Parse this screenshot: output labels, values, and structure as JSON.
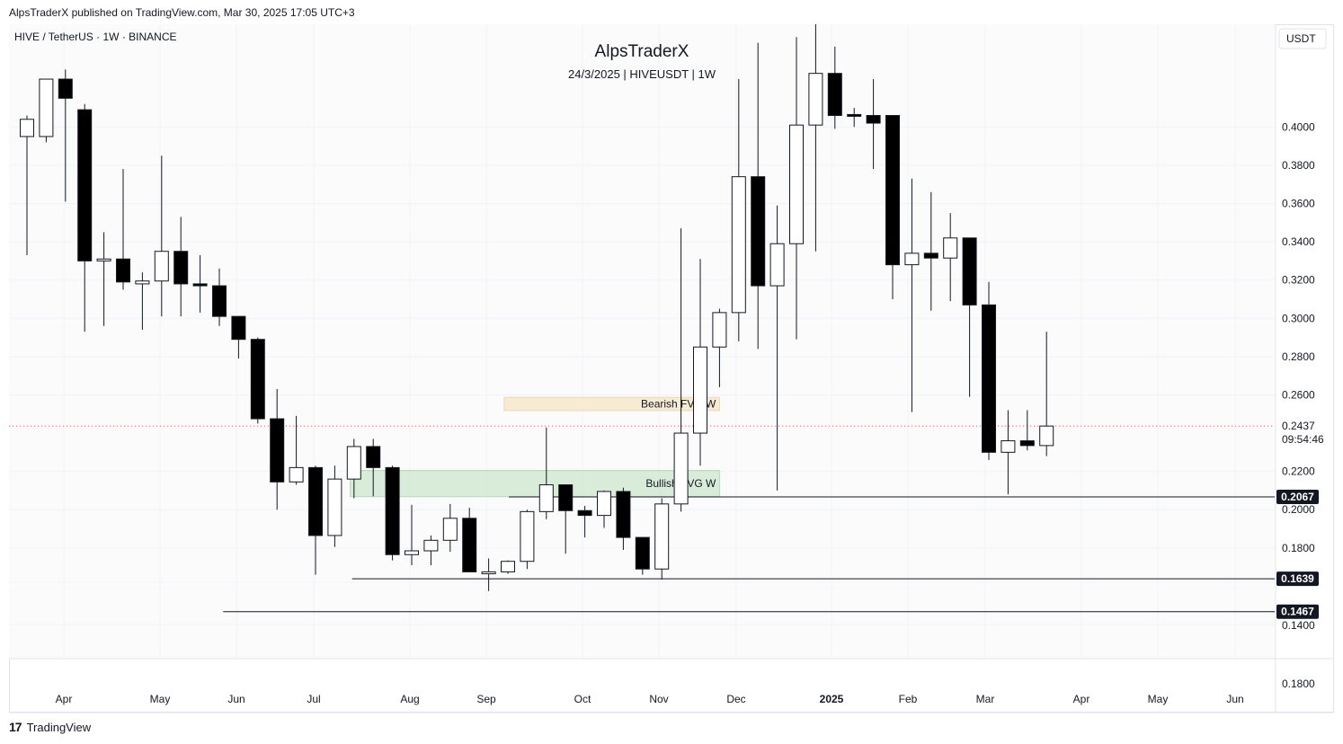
{
  "header": {
    "publisher_line": "AlpsTraderX published on TradingView.com, Mar 30, 2025 17:05 UTC+3"
  },
  "footer": {
    "brand": "TradingView"
  },
  "chart_data": {
    "type": "candlestick",
    "symbol_line": "HIVE / TetherUS · 1W · BINANCE",
    "title": "AlpsTraderX",
    "subtitle": "24/3/2025 | HIVEUSDT | 1W",
    "currency_label": "USDT",
    "y_ticks": [
      "0.4000",
      "0.3800",
      "0.3600",
      "0.3400",
      "0.3200",
      "0.3000",
      "0.2800",
      "0.2600",
      "0.2200",
      "0.2000",
      "0.1800",
      "0.1400"
    ],
    "lower_pane_tick": "0.1800",
    "x_ticks": [
      "Apr",
      "May",
      "Jun",
      "Jul",
      "Aug",
      "Sep",
      "Oct",
      "Nov",
      "Dec",
      "2025",
      "Feb",
      "Mar",
      "Apr",
      "May",
      "Jun"
    ],
    "ylim": [
      0.138,
      0.418
    ],
    "grid": true,
    "last_price": {
      "value": "0.2437",
      "countdown": "09:54:46"
    },
    "zones": [
      {
        "label": "Bearish FVG W",
        "from_week": 24.9,
        "to_week": 36,
        "top": 0.2587,
        "bottom": 0.2518,
        "color": "#f5deb3"
      },
      {
        "label": "Bullish FVG W",
        "from_week": 16.9,
        "to_week": 36,
        "top": 0.2205,
        "bottom": 0.2068,
        "color": "#a5d6a7"
      }
    ],
    "levels": [
      {
        "label": "0.2067",
        "value": 0.2067,
        "from_week": 25.05
      },
      {
        "label": "0.1639",
        "value": 0.1639,
        "from_week": 16.9
      },
      {
        "label": "0.1467",
        "value": 0.1467,
        "from_week": 10.2
      }
    ],
    "candles": [
      {
        "o": 0.395,
        "h": 0.406,
        "l": 0.333,
        "c": 0.404
      },
      {
        "o": 0.395,
        "h": 0.425,
        "l": 0.392,
        "c": 0.425
      },
      {
        "o": 0.425,
        "h": 0.43,
        "l": 0.361,
        "c": 0.415
      },
      {
        "o": 0.409,
        "h": 0.412,
        "l": 0.293,
        "c": 0.33
      },
      {
        "o": 0.33,
        "h": 0.345,
        "l": 0.296,
        "c": 0.331
      },
      {
        "o": 0.331,
        "h": 0.378,
        "l": 0.315,
        "c": 0.319
      },
      {
        "o": 0.318,
        "h": 0.324,
        "l": 0.294,
        "c": 0.3195
      },
      {
        "o": 0.3195,
        "h": 0.385,
        "l": 0.301,
        "c": 0.335
      },
      {
        "o": 0.335,
        "h": 0.353,
        "l": 0.301,
        "c": 0.318
      },
      {
        "o": 0.318,
        "h": 0.333,
        "l": 0.303,
        "c": 0.317
      },
      {
        "o": 0.317,
        "h": 0.326,
        "l": 0.296,
        "c": 0.301
      },
      {
        "o": 0.301,
        "h": 0.301,
        "l": 0.279,
        "c": 0.289
      },
      {
        "o": 0.289,
        "h": 0.29,
        "l": 0.245,
        "c": 0.2475
      },
      {
        "o": 0.2475,
        "h": 0.263,
        "l": 0.2,
        "c": 0.2145
      },
      {
        "o": 0.2145,
        "h": 0.249,
        "l": 0.213,
        "c": 0.222
      },
      {
        "o": 0.222,
        "h": 0.223,
        "l": 0.166,
        "c": 0.1865
      },
      {
        "o": 0.1865,
        "h": 0.223,
        "l": 0.1805,
        "c": 0.216
      },
      {
        "o": 0.216,
        "h": 0.237,
        "l": 0.206,
        "c": 0.233
      },
      {
        "o": 0.233,
        "h": 0.237,
        "l": 0.207,
        "c": 0.222
      },
      {
        "o": 0.222,
        "h": 0.223,
        "l": 0.1735,
        "c": 0.1765
      },
      {
        "o": 0.1765,
        "h": 0.2025,
        "l": 0.171,
        "c": 0.1785
      },
      {
        "o": 0.1785,
        "h": 0.1865,
        "l": 0.171,
        "c": 0.184
      },
      {
        "o": 0.184,
        "h": 0.203,
        "l": 0.178,
        "c": 0.1955
      },
      {
        "o": 0.1955,
        "h": 0.201,
        "l": 0.168,
        "c": 0.1675
      },
      {
        "o": 0.1665,
        "h": 0.1745,
        "l": 0.1575,
        "c": 0.1675
      },
      {
        "o": 0.1675,
        "h": 0.1735,
        "l": 0.1665,
        "c": 0.173
      },
      {
        "o": 0.173,
        "h": 0.2,
        "l": 0.169,
        "c": 0.199
      },
      {
        "o": 0.199,
        "h": 0.243,
        "l": 0.195,
        "c": 0.213
      },
      {
        "o": 0.213,
        "h": 0.213,
        "l": 0.177,
        "c": 0.1995
      },
      {
        "o": 0.1995,
        "h": 0.202,
        "l": 0.1855,
        "c": 0.197
      },
      {
        "o": 0.197,
        "h": 0.21,
        "l": 0.1905,
        "c": 0.2095
      },
      {
        "o": 0.2095,
        "h": 0.2115,
        "l": 0.179,
        "c": 0.1855
      },
      {
        "o": 0.1855,
        "h": 0.1855,
        "l": 0.166,
        "c": 0.169
      },
      {
        "o": 0.169,
        "h": 0.206,
        "l": 0.1635,
        "c": 0.203
      },
      {
        "o": 0.203,
        "h": 0.347,
        "l": 0.199,
        "c": 0.24
      },
      {
        "o": 0.24,
        "h": 0.331,
        "l": 0.223,
        "c": 0.285
      },
      {
        "o": 0.285,
        "h": 0.305,
        "l": 0.264,
        "c": 0.303
      },
      {
        "o": 0.303,
        "h": 0.425,
        "l": 0.288,
        "c": 0.374
      },
      {
        "o": 0.374,
        "h": 0.444,
        "l": 0.284,
        "c": 0.317
      },
      {
        "o": 0.317,
        "h": 0.359,
        "l": 0.21,
        "c": 0.339
      },
      {
        "o": 0.339,
        "h": 0.447,
        "l": 0.289,
        "c": 0.401
      },
      {
        "o": 0.401,
        "h": 0.455,
        "l": 0.335,
        "c": 0.428
      },
      {
        "o": 0.428,
        "h": 0.442,
        "l": 0.399,
        "c": 0.406
      },
      {
        "o": 0.4065,
        "h": 0.41,
        "l": 0.4,
        "c": 0.406
      },
      {
        "o": 0.406,
        "h": 0.425,
        "l": 0.378,
        "c": 0.402
      },
      {
        "o": 0.406,
        "h": 0.406,
        "l": 0.31,
        "c": 0.328
      },
      {
        "o": 0.328,
        "h": 0.373,
        "l": 0.251,
        "c": 0.334
      },
      {
        "o": 0.334,
        "h": 0.366,
        "l": 0.304,
        "c": 0.3315
      },
      {
        "o": 0.3315,
        "h": 0.355,
        "l": 0.309,
        "c": 0.342
      },
      {
        "o": 0.342,
        "h": 0.342,
        "l": 0.259,
        "c": 0.307
      },
      {
        "o": 0.307,
        "h": 0.319,
        "l": 0.226,
        "c": 0.23
      },
      {
        "o": 0.23,
        "h": 0.252,
        "l": 0.208,
        "c": 0.236
      },
      {
        "o": 0.236,
        "h": 0.252,
        "l": 0.231,
        "c": 0.2335
      },
      {
        "o": 0.2335,
        "h": 0.293,
        "l": 0.228,
        "c": 0.2437
      }
    ]
  }
}
